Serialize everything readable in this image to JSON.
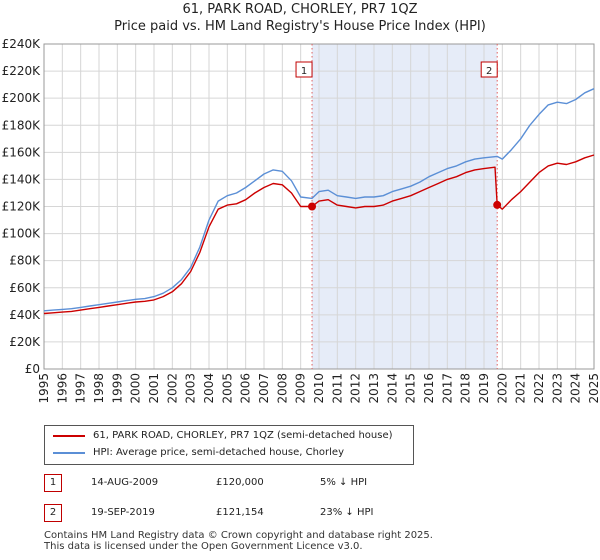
{
  "title": "61, PARK ROAD, CHORLEY, PR7 1QZ",
  "subtitle": "Price paid vs. HM Land Registry's House Price Index (HPI)",
  "legend": [
    {
      "label": "61, PARK ROAD, CHORLEY, PR7 1QZ (semi-detached house)",
      "color": "#cc0000"
    },
    {
      "label": "HPI: Average price, semi-detached house, Chorley",
      "color": "#5b8fd6"
    }
  ],
  "sales": [
    {
      "num": "1",
      "date": "14-AUG-2009",
      "price": "£120,000",
      "hpi": "5% ↓ HPI",
      "year": 2009.62,
      "value": 120000
    },
    {
      "num": "2",
      "date": "19-SEP-2019",
      "price": "£121,154",
      "hpi": "23% ↓ HPI",
      "year": 2019.72,
      "value": 121154
    }
  ],
  "footer": {
    "line1": "Contains HM Land Registry data © Crown copyright and database right 2025.",
    "line2": "This data is licensed under the Open Government Licence v3.0."
  },
  "colors": {
    "property": "#cc0000",
    "hpi": "#5b8fd6",
    "shade": "#e6ecf8",
    "grid": "#d6d6d6",
    "marker_line": "#e06060"
  },
  "chart_data": {
    "type": "line",
    "xlim": [
      1995,
      2025
    ],
    "ylim": [
      0,
      240000
    ],
    "x_ticks": [
      1995,
      1996,
      1997,
      1998,
      1999,
      2000,
      2001,
      2002,
      2003,
      2004,
      2005,
      2006,
      2007,
      2008,
      2009,
      2010,
      2011,
      2012,
      2013,
      2014,
      2015,
      2016,
      2017,
      2018,
      2019,
      2020,
      2021,
      2022,
      2023,
      2024,
      2025
    ],
    "y_ticks": [
      0,
      20000,
      40000,
      60000,
      80000,
      100000,
      120000,
      140000,
      160000,
      180000,
      200000,
      220000,
      240000
    ],
    "y_tick_labels": [
      "£0",
      "£20K",
      "£40K",
      "£60K",
      "£80K",
      "£100K",
      "£120K",
      "£140K",
      "£160K",
      "£180K",
      "£200K",
      "£220K",
      "£240K"
    ],
    "grid": true,
    "shaded_range": [
      2009.62,
      2019.72
    ],
    "series": [
      {
        "name": "HPI: Average price, semi-detached house, Chorley",
        "x": [
          1995,
          1995.5,
          1996,
          1996.5,
          1997,
          1997.5,
          1998,
          1998.5,
          1999,
          1999.5,
          2000,
          2000.5,
          2001,
          2001.5,
          2002,
          2002.5,
          2003,
          2003.5,
          2004,
          2004.5,
          2005,
          2005.5,
          2006,
          2006.5,
          2007,
          2007.5,
          2008,
          2008.5,
          2009,
          2009.62,
          2010,
          2010.5,
          2011,
          2011.5,
          2012,
          2012.5,
          2013,
          2013.5,
          2014,
          2014.5,
          2015,
          2015.5,
          2016,
          2016.5,
          2017,
          2017.5,
          2018,
          2018.5,
          2019,
          2019.72,
          2020,
          2020.5,
          2021,
          2021.5,
          2022,
          2022.5,
          2023,
          2023.5,
          2024,
          2024.5,
          2025
        ],
        "values": [
          43000,
          43500,
          44000,
          44500,
          45500,
          46500,
          47500,
          48500,
          49500,
          50500,
          51500,
          52000,
          53500,
          56000,
          60000,
          66000,
          75000,
          90000,
          110000,
          124000,
          128000,
          130000,
          134000,
          139000,
          144000,
          147000,
          146000,
          139000,
          127000,
          126000,
          131000,
          132000,
          128000,
          127000,
          126000,
          127000,
          127000,
          128000,
          131000,
          133000,
          135000,
          138000,
          142000,
          145000,
          148000,
          150000,
          153000,
          155000,
          156000,
          157000,
          155000,
          162000,
          170000,
          180000,
          188000,
          195000,
          197000,
          196000,
          199000,
          204000,
          207000
        ]
      },
      {
        "name": "61, PARK ROAD, CHORLEY, PR7 1QZ (semi-detached house)",
        "x": [
          1995,
          1995.5,
          1996,
          1996.5,
          1997,
          1997.5,
          1998,
          1998.5,
          1999,
          1999.5,
          2000,
          2000.5,
          2001,
          2001.5,
          2002,
          2002.5,
          2003,
          2003.5,
          2004,
          2004.5,
          2005,
          2005.5,
          2006,
          2006.5,
          2007,
          2007.5,
          2008,
          2008.5,
          2009,
          2009.62,
          2010,
          2010.5,
          2011,
          2011.5,
          2012,
          2012.5,
          2013,
          2013.5,
          2014,
          2014.5,
          2015,
          2015.5,
          2016,
          2016.5,
          2017,
          2017.5,
          2018,
          2018.5,
          2019,
          2019.6,
          2019.72,
          2020,
          2020.5,
          2021,
          2021.5,
          2022,
          2022.5,
          2023,
          2023.5,
          2024,
          2024.5,
          2025
        ],
        "values": [
          41000,
          41500,
          42000,
          42500,
          43500,
          44500,
          45500,
          46500,
          47500,
          48500,
          49500,
          50000,
          51000,
          53500,
          57000,
          63000,
          72000,
          86000,
          105000,
          118000,
          121000,
          122000,
          125000,
          130000,
          134000,
          137000,
          136000,
          130000,
          120000,
          120000,
          124000,
          125000,
          121000,
          120000,
          119000,
          120000,
          120000,
          121000,
          124000,
          126000,
          128000,
          131000,
          134000,
          137000,
          140000,
          142000,
          145000,
          147000,
          148000,
          149000,
          121154,
          118000,
          125000,
          131000,
          138000,
          145000,
          150000,
          152000,
          151000,
          153000,
          156000,
          158000
        ]
      }
    ],
    "markers": [
      {
        "label": "1",
        "x": 2009.62,
        "y": 120000
      },
      {
        "label": "2",
        "x": 2019.72,
        "y": 121154
      }
    ]
  }
}
